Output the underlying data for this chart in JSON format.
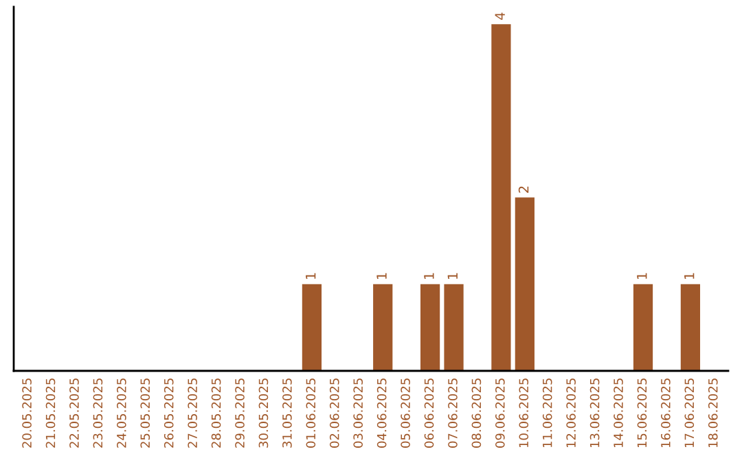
{
  "chart_data": {
    "type": "bar",
    "categories": [
      "20.05.2025",
      "21.05.2025",
      "22.05.2025",
      "23.05.2025",
      "24.05.2025",
      "25.05.2025",
      "26.05.2025",
      "27.05.2025",
      "28.05.2025",
      "29.05.2025",
      "30.05.2025",
      "31.05.2025",
      "01.06.2025",
      "02.06.2025",
      "03.06.2025",
      "04.06.2025",
      "05.06.2025",
      "06.06.2025",
      "07.06.2025",
      "08.06.2025",
      "09.06.2025",
      "10.06.2025",
      "11.06.2025",
      "12.06.2025",
      "13.06.2025",
      "14.06.2025",
      "15.06.2025",
      "16.06.2025",
      "17.06.2025",
      "18.06.2025"
    ],
    "values": [
      null,
      null,
      null,
      null,
      null,
      null,
      null,
      null,
      null,
      null,
      null,
      null,
      1,
      null,
      null,
      1,
      null,
      1,
      1,
      null,
      4,
      2,
      null,
      null,
      null,
      null,
      1,
      null,
      1,
      null
    ],
    "value_labels": [
      null,
      null,
      null,
      null,
      null,
      null,
      null,
      null,
      null,
      null,
      null,
      null,
      "1",
      null,
      null,
      "1",
      null,
      "1",
      "1",
      null,
      "4",
      "2",
      null,
      null,
      null,
      null,
      "1",
      null,
      "1",
      null
    ],
    "color": "#a0582a",
    "tick_labels": "x",
    "grid": false
  }
}
